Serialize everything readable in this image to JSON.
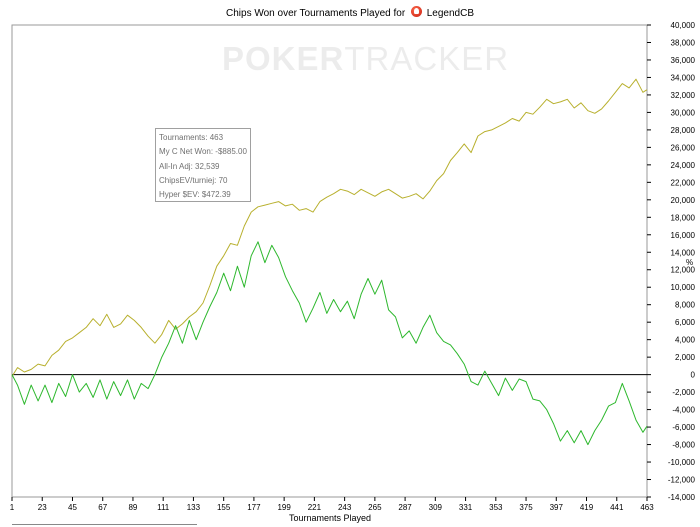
{
  "chart_data": {
    "type": "line",
    "title": "Chips Won over Tournaments Played for",
    "player": "LegendCB",
    "xlabel": "Tournaments Played",
    "ylabel": "",
    "y_unit_label": "%",
    "xlim": [
      1,
      463
    ],
    "ylim": [
      -14000,
      40000
    ],
    "x_ticks": [
      1,
      23,
      45,
      67,
      89,
      111,
      133,
      155,
      177,
      199,
      221,
      243,
      265,
      287,
      309,
      331,
      353,
      375,
      397,
      419,
      441,
      463
    ],
    "y_ticks": [
      40000,
      38000,
      36000,
      34000,
      32000,
      30000,
      28000,
      26000,
      24000,
      22000,
      20000,
      18000,
      16000,
      14000,
      12000,
      10000,
      8000,
      6000,
      4000,
      2000,
      0,
      -2000,
      -4000,
      -6000,
      -8000,
      -10000,
      -12000,
      -14000
    ],
    "y_tick_labels": [
      "40,000",
      "38,000",
      "36,000",
      "34,000",
      "32,000",
      "30,000",
      "28,000",
      "26,000",
      "24,000",
      "22,000",
      "20,000",
      "18,000",
      "16,000",
      "14,000",
      "12,000",
      "10,000",
      "8,000",
      "6,000",
      "4,000",
      "2,000",
      "0",
      "-2,000",
      "-4,000",
      "-6,000",
      "-8,000",
      "-10,000",
      "-12,000",
      "-14,000"
    ],
    "grid": false,
    "legend": "none",
    "series": [
      {
        "color": "#b8b02e",
        "points": [
          [
            1,
            -200
          ],
          [
            5,
            800
          ],
          [
            10,
            300
          ],
          [
            15,
            600
          ],
          [
            20,
            1200
          ],
          [
            25,
            1000
          ],
          [
            30,
            2200
          ],
          [
            35,
            2800
          ],
          [
            40,
            3800
          ],
          [
            45,
            4200
          ],
          [
            50,
            4800
          ],
          [
            55,
            5400
          ],
          [
            60,
            6400
          ],
          [
            65,
            5600
          ],
          [
            70,
            6900
          ],
          [
            75,
            5400
          ],
          [
            80,
            5800
          ],
          [
            85,
            6800
          ],
          [
            90,
            6200
          ],
          [
            95,
            5400
          ],
          [
            100,
            4400
          ],
          [
            105,
            3600
          ],
          [
            110,
            4600
          ],
          [
            115,
            6200
          ],
          [
            120,
            5200
          ],
          [
            125,
            5800
          ],
          [
            130,
            6600
          ],
          [
            135,
            7200
          ],
          [
            140,
            8200
          ],
          [
            145,
            10200
          ],
          [
            150,
            12400
          ],
          [
            155,
            13600
          ],
          [
            160,
            15000
          ],
          [
            165,
            14800
          ],
          [
            170,
            17000
          ],
          [
            175,
            18600
          ],
          [
            180,
            19200
          ],
          [
            185,
            19400
          ],
          [
            190,
            19600
          ],
          [
            195,
            19800
          ],
          [
            200,
            19300
          ],
          [
            205,
            19500
          ],
          [
            210,
            18800
          ],
          [
            215,
            19000
          ],
          [
            220,
            18600
          ],
          [
            225,
            19800
          ],
          [
            230,
            20300
          ],
          [
            235,
            20700
          ],
          [
            240,
            21200
          ],
          [
            245,
            21000
          ],
          [
            250,
            20600
          ],
          [
            255,
            21200
          ],
          [
            260,
            20800
          ],
          [
            265,
            20400
          ],
          [
            270,
            20900
          ],
          [
            275,
            21200
          ],
          [
            280,
            20700
          ],
          [
            285,
            20200
          ],
          [
            290,
            20400
          ],
          [
            295,
            20700
          ],
          [
            300,
            20100
          ],
          [
            305,
            21000
          ],
          [
            310,
            22200
          ],
          [
            315,
            23000
          ],
          [
            320,
            24500
          ],
          [
            325,
            25400
          ],
          [
            330,
            26400
          ],
          [
            335,
            25400
          ],
          [
            340,
            27300
          ],
          [
            345,
            27800
          ],
          [
            350,
            28000
          ],
          [
            355,
            28400
          ],
          [
            360,
            28800
          ],
          [
            365,
            29300
          ],
          [
            370,
            29000
          ],
          [
            375,
            30000
          ],
          [
            380,
            29800
          ],
          [
            385,
            30600
          ],
          [
            390,
            31500
          ],
          [
            395,
            31000
          ],
          [
            400,
            31200
          ],
          [
            405,
            31500
          ],
          [
            410,
            30500
          ],
          [
            415,
            31100
          ],
          [
            420,
            30200
          ],
          [
            425,
            29900
          ],
          [
            430,
            30400
          ],
          [
            435,
            31300
          ],
          [
            440,
            32300
          ],
          [
            445,
            33300
          ],
          [
            450,
            32800
          ],
          [
            455,
            33800
          ],
          [
            460,
            32300
          ],
          [
            463,
            32600
          ]
        ]
      },
      {
        "color": "#2eb82e",
        "points": [
          [
            1,
            0
          ],
          [
            5,
            -1200
          ],
          [
            10,
            -3400
          ],
          [
            15,
            -1200
          ],
          [
            20,
            -3000
          ],
          [
            25,
            -1200
          ],
          [
            30,
            -3200
          ],
          [
            35,
            -1000
          ],
          [
            40,
            -2500
          ],
          [
            45,
            0
          ],
          [
            50,
            -2000
          ],
          [
            55,
            -1000
          ],
          [
            60,
            -2600
          ],
          [
            65,
            -600
          ],
          [
            70,
            -2800
          ],
          [
            75,
            -800
          ],
          [
            80,
            -2400
          ],
          [
            85,
            -600
          ],
          [
            90,
            -2800
          ],
          [
            95,
            -1000
          ],
          [
            100,
            -1600
          ],
          [
            105,
            0
          ],
          [
            110,
            2000
          ],
          [
            115,
            3600
          ],
          [
            120,
            5600
          ],
          [
            125,
            3600
          ],
          [
            130,
            6200
          ],
          [
            135,
            4000
          ],
          [
            140,
            6000
          ],
          [
            145,
            7800
          ],
          [
            150,
            9400
          ],
          [
            155,
            11600
          ],
          [
            160,
            9600
          ],
          [
            165,
            12400
          ],
          [
            170,
            10000
          ],
          [
            175,
            13600
          ],
          [
            180,
            15200
          ],
          [
            185,
            12800
          ],
          [
            190,
            14800
          ],
          [
            195,
            13400
          ],
          [
            200,
            11200
          ],
          [
            205,
            9600
          ],
          [
            210,
            8200
          ],
          [
            215,
            6000
          ],
          [
            220,
            7600
          ],
          [
            225,
            9400
          ],
          [
            230,
            7000
          ],
          [
            235,
            8600
          ],
          [
            240,
            7200
          ],
          [
            245,
            8400
          ],
          [
            250,
            6400
          ],
          [
            255,
            9200
          ],
          [
            260,
            11000
          ],
          [
            265,
            9200
          ],
          [
            270,
            10800
          ],
          [
            275,
            7400
          ],
          [
            280,
            6600
          ],
          [
            285,
            4200
          ],
          [
            290,
            5000
          ],
          [
            295,
            3600
          ],
          [
            300,
            5400
          ],
          [
            305,
            6800
          ],
          [
            310,
            4800
          ],
          [
            315,
            3800
          ],
          [
            320,
            3400
          ],
          [
            325,
            2400
          ],
          [
            330,
            1200
          ],
          [
            335,
            -800
          ],
          [
            340,
            -1200
          ],
          [
            345,
            400
          ],
          [
            350,
            -1000
          ],
          [
            355,
            -2400
          ],
          [
            360,
            -400
          ],
          [
            365,
            -1800
          ],
          [
            370,
            -500
          ],
          [
            375,
            -800
          ],
          [
            380,
            -2800
          ],
          [
            385,
            -3000
          ],
          [
            390,
            -4000
          ],
          [
            395,
            -5600
          ],
          [
            400,
            -7600
          ],
          [
            405,
            -6400
          ],
          [
            410,
            -7800
          ],
          [
            415,
            -6400
          ],
          [
            420,
            -8000
          ],
          [
            425,
            -6400
          ],
          [
            430,
            -5200
          ],
          [
            435,
            -3600
          ],
          [
            440,
            -3200
          ],
          [
            445,
            -1000
          ],
          [
            450,
            -3000
          ],
          [
            455,
            -5200
          ],
          [
            460,
            -6600
          ],
          [
            463,
            -5900
          ]
        ]
      }
    ]
  },
  "tooltip": {
    "line1": "Tournaments: 463",
    "line2": "My C Net Won: -$885.00",
    "line3": "All-In Adj: 32,539",
    "line4": "ChipsEV/turniej: 70",
    "line5": "Hyper $EV: $472.39"
  },
  "watermark": {
    "part1": "POKER",
    "part2": "TRACKER"
  }
}
